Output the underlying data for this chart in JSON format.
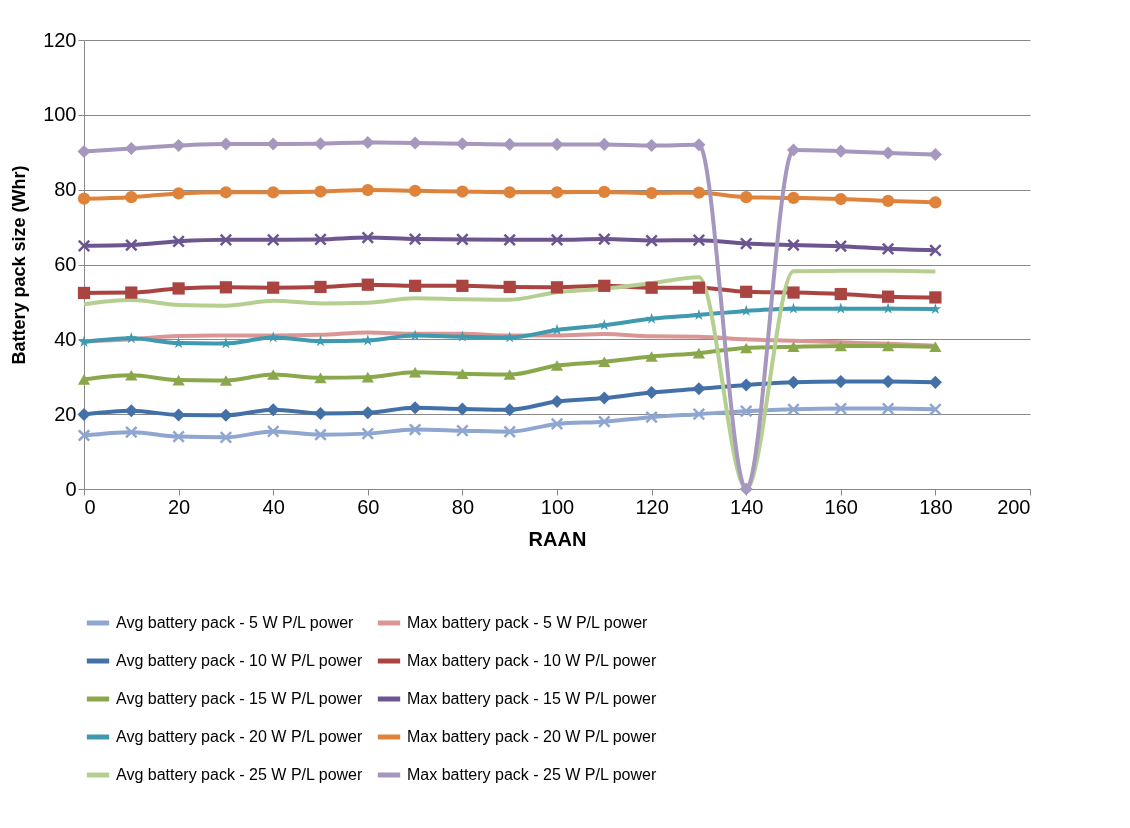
{
  "chart_data": {
    "type": "line",
    "xlabel": "RAAN",
    "ylabel": "Battery pack size (Whr)",
    "x": [
      0,
      10,
      20,
      30,
      40,
      50,
      60,
      70,
      80,
      90,
      100,
      110,
      120,
      130,
      140,
      150,
      160,
      170,
      180
    ],
    "xlim": [
      0,
      200
    ],
    "xticks": [
      0,
      20,
      40,
      60,
      80,
      100,
      120,
      140,
      160,
      180,
      200
    ],
    "ylim": [
      0,
      120
    ],
    "yticks": [
      0,
      20,
      40,
      60,
      80,
      100,
      120
    ],
    "grid": "y",
    "legend": "bottom",
    "line_style": "solid",
    "series": [
      {
        "name": "Avg battery pack - 5 W P/L power",
        "color": "#8ea6d0",
        "marker": "cross",
        "values": [
          14.3,
          15.2,
          14,
          13.8,
          15.4,
          14.5,
          14.8,
          15.9,
          15.6,
          15.3,
          17.4,
          18,
          19.2,
          20,
          20.8,
          21.3,
          21.5,
          21.5,
          21.3
        ]
      },
      {
        "name": "Max battery pack - 5 W P/L power",
        "color": "#d99694",
        "marker": "none",
        "values": [
          39.5,
          40,
          40.9,
          41,
          41,
          41.2,
          41.8,
          41.5,
          41.5,
          41,
          41,
          41.4,
          40.8,
          40.7,
          40,
          39.6,
          39.2,
          38.8,
          38.3
        ]
      },
      {
        "name": "Avg battery pack - 10 W P/L power",
        "color": "#4470a8",
        "marker": "diamond",
        "values": [
          19.9,
          20.9,
          19.8,
          19.7,
          21.2,
          20.2,
          20.4,
          21.7,
          21.4,
          21.2,
          23.4,
          24.3,
          25.8,
          26.8,
          27.8,
          28.5,
          28.7,
          28.7,
          28.5
        ]
      },
      {
        "name": "Max battery pack - 10 W P/L power",
        "color": "#a94441",
        "marker": "square",
        "values": [
          52.4,
          52.5,
          53.6,
          53.9,
          53.8,
          54,
          54.6,
          54.3,
          54.3,
          54,
          53.9,
          54.3,
          53.8,
          53.8,
          52.7,
          52.5,
          52.1,
          51.4,
          51.2
        ]
      },
      {
        "name": "Avg battery pack - 15 W P/L power",
        "color": "#8aa84b",
        "marker": "triangle",
        "values": [
          29.3,
          30.4,
          29.1,
          29,
          30.6,
          29.7,
          29.9,
          31.2,
          30.8,
          30.6,
          33,
          34,
          35.4,
          36.3,
          37.7,
          38,
          38.2,
          38.2,
          38
        ]
      },
      {
        "name": "Max battery pack - 15 W P/L power",
        "color": "#6c5590",
        "marker": "cross",
        "values": [
          65,
          65.2,
          66.2,
          66.6,
          66.6,
          66.7,
          67.2,
          66.8,
          66.7,
          66.6,
          66.6,
          66.8,
          66.4,
          66.5,
          65.6,
          65.2,
          64.9,
          64.2,
          63.8
        ]
      },
      {
        "name": "Avg battery pack - 20 W P/L power",
        "color": "#3f9ab0",
        "marker": "star",
        "values": [
          39.3,
          40.3,
          39,
          38.9,
          40.5,
          39.5,
          39.7,
          41,
          40.7,
          40.5,
          42.5,
          43.8,
          45.5,
          46.5,
          47.6,
          48.2,
          48.2,
          48.2,
          48.1
        ]
      },
      {
        "name": "Max battery pack - 20 W P/L power",
        "color": "#e0833a",
        "marker": "circle",
        "values": [
          77.6,
          78,
          79,
          79.3,
          79.3,
          79.5,
          79.9,
          79.7,
          79.5,
          79.3,
          79.3,
          79.4,
          79.1,
          79.2,
          78,
          77.8,
          77.5,
          77,
          76.6
        ]
      },
      {
        "name": "Avg battery pack - 25 W P/L power",
        "color": "#b5cf90",
        "marker": "none",
        "values": [
          49.4,
          50.5,
          49.2,
          49,
          50.3,
          49.6,
          49.8,
          51,
          50.7,
          50.6,
          52.6,
          53.5,
          55,
          56.6,
          0,
          58.2,
          58.3,
          58.3,
          58.1
        ]
      },
      {
        "name": "Max battery pack - 25 W P/L power",
        "color": "#a597be",
        "marker": "diamond",
        "values": [
          90.2,
          91,
          91.8,
          92.2,
          92.2,
          92.3,
          92.6,
          92.5,
          92.3,
          92.1,
          92.1,
          92.1,
          91.8,
          92,
          0,
          90.6,
          90.3,
          89.8,
          89.4
        ]
      }
    ]
  }
}
